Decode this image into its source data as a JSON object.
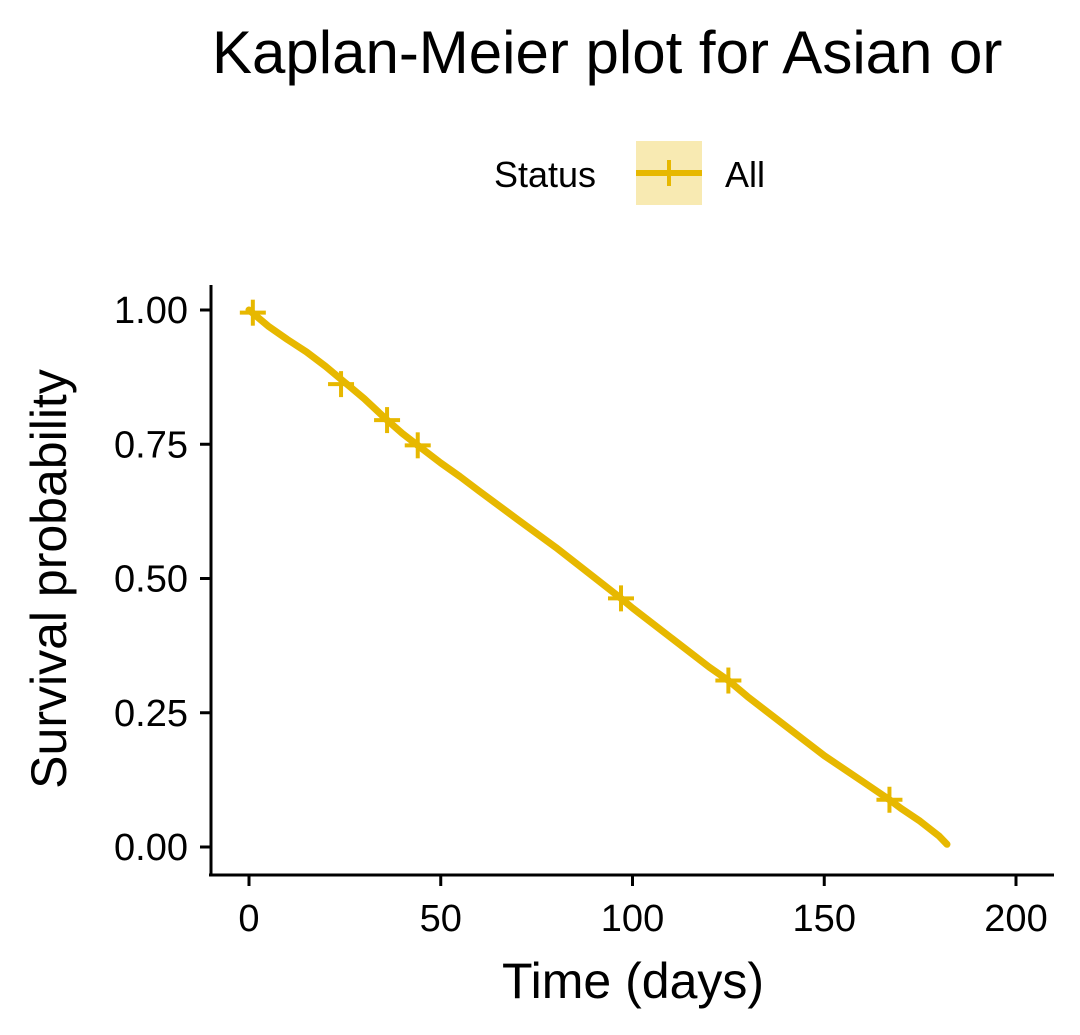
{
  "chart_data": {
    "type": "line",
    "title": "Kaplan-Meier plot for Asian or",
    "xlabel": "Time (days)",
    "ylabel": "Survival probability",
    "xlim": [
      0,
      200
    ],
    "ylim": [
      0,
      1
    ],
    "xticks": [
      "0",
      "50",
      "100",
      "150",
      "200"
    ],
    "yticks": [
      "0.00",
      "0.25",
      "0.50",
      "0.75",
      "1.00"
    ],
    "grid": false,
    "legend": {
      "title": "Status",
      "position": "top",
      "entries": [
        "All"
      ]
    },
    "series": [
      {
        "name": "All",
        "color": "#E7B800",
        "x": [
          0,
          5,
          10,
          15,
          20,
          25,
          30,
          36,
          40,
          44,
          50,
          55,
          60,
          70,
          80,
          90,
          97,
          100,
          110,
          120,
          125,
          130,
          140,
          150,
          160,
          167,
          170,
          175,
          180,
          182
        ],
        "y": [
          1.0,
          0.97,
          0.945,
          0.922,
          0.895,
          0.865,
          0.835,
          0.795,
          0.77,
          0.748,
          0.715,
          0.69,
          0.663,
          0.61,
          0.558,
          0.502,
          0.463,
          0.445,
          0.39,
          0.335,
          0.31,
          0.28,
          0.225,
          0.17,
          0.122,
          0.088,
          0.072,
          0.048,
          0.02,
          0.005
        ],
        "censored": [
          {
            "x": 1,
            "y": 0.995
          },
          {
            "x": 24,
            "y": 0.862
          },
          {
            "x": 36,
            "y": 0.795
          },
          {
            "x": 44,
            "y": 0.748
          },
          {
            "x": 97,
            "y": 0.463
          },
          {
            "x": 125,
            "y": 0.31
          },
          {
            "x": 167,
            "y": 0.088
          }
        ]
      }
    ]
  }
}
